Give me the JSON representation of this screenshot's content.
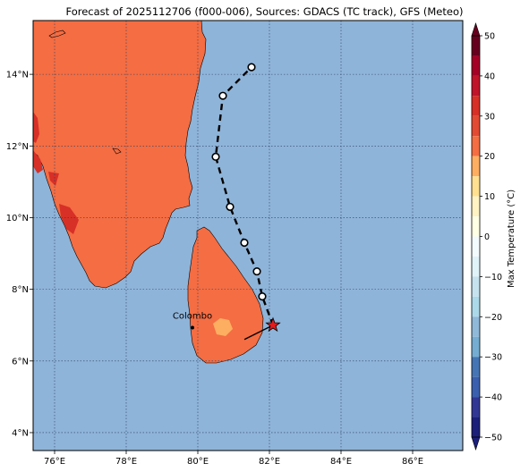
{
  "title": "Forecast of 2025112706 (f000-006), Sources: GDACS (TC track), GFS (Meteo)",
  "map": {
    "lon_range": [
      75.4,
      87.4
    ],
    "lat_range": [
      3.5,
      15.5
    ],
    "x_ticks": [
      "76°E",
      "78°E",
      "80°E",
      "82°E",
      "84°E",
      "86°E"
    ],
    "x_tick_values": [
      76,
      78,
      80,
      82,
      84,
      86
    ],
    "y_ticks": [
      "4°N",
      "6°N",
      "8°N",
      "10°N",
      "12°N",
      "14°N"
    ],
    "y_tick_values": [
      4,
      6,
      8,
      10,
      12,
      14
    ],
    "ocean_color": "#8fb4d9",
    "land_color": "#f46d43",
    "hot_color": "#d73027",
    "cool_color": "#fdae61",
    "grid": true
  },
  "city": {
    "name": "Colombo",
    "lon": 79.85,
    "lat": 6.93
  },
  "track": {
    "points": [
      {
        "lon": 82.1,
        "lat": 7.0
      },
      {
        "lon": 81.8,
        "lat": 7.8
      },
      {
        "lon": 81.65,
        "lat": 8.5
      },
      {
        "lon": 81.3,
        "lat": 9.3
      },
      {
        "lon": 80.9,
        "lat": 10.3
      },
      {
        "lon": 80.5,
        "lat": 11.7
      },
      {
        "lon": 80.7,
        "lat": 13.4
      },
      {
        "lon": 81.5,
        "lat": 14.2
      }
    ],
    "current_position": {
      "lon": 82.1,
      "lat": 7.0
    },
    "motion_vector_start": {
      "lon": 81.3,
      "lat": 6.6
    }
  },
  "colorbar": {
    "label": "Max Temperature (°C)",
    "ticks": [
      "50",
      "40",
      "30",
      "20",
      "10",
      "0",
      "−10",
      "−20",
      "−30",
      "−40",
      "−50"
    ],
    "min": -50,
    "max": 50,
    "levels": [
      {
        "from": 45,
        "to": 50,
        "color": "#67001f"
      },
      {
        "from": 40,
        "to": 45,
        "color": "#a50026"
      },
      {
        "from": 35,
        "to": 40,
        "color": "#c0142a"
      },
      {
        "from": 30,
        "to": 35,
        "color": "#d73027"
      },
      {
        "from": 25,
        "to": 30,
        "color": "#e34a33"
      },
      {
        "from": 20,
        "to": 25,
        "color": "#f46d43"
      },
      {
        "from": 15,
        "to": 20,
        "color": "#fdae61"
      },
      {
        "from": 10,
        "to": 15,
        "color": "#fee090"
      },
      {
        "from": 5,
        "to": 10,
        "color": "#fff3c4"
      },
      {
        "from": 0,
        "to": 5,
        "color": "#ffffe5"
      },
      {
        "from": -5,
        "to": 0,
        "color": "#f4fbff"
      },
      {
        "from": -10,
        "to": -5,
        "color": "#e0f3f8"
      },
      {
        "from": -15,
        "to": -10,
        "color": "#c6e2ef"
      },
      {
        "from": -20,
        "to": -15,
        "color": "#abd9e9"
      },
      {
        "from": -25,
        "to": -20,
        "color": "#90b8d8"
      },
      {
        "from": -30,
        "to": -25,
        "color": "#74add1"
      },
      {
        "from": -35,
        "to": -30,
        "color": "#4575b4"
      },
      {
        "from": -40,
        "to": -35,
        "color": "#3a5fae"
      },
      {
        "from": -45,
        "to": -40,
        "color": "#313695"
      },
      {
        "from": -50,
        "to": -45,
        "color": "#1b1f7a"
      }
    ]
  }
}
